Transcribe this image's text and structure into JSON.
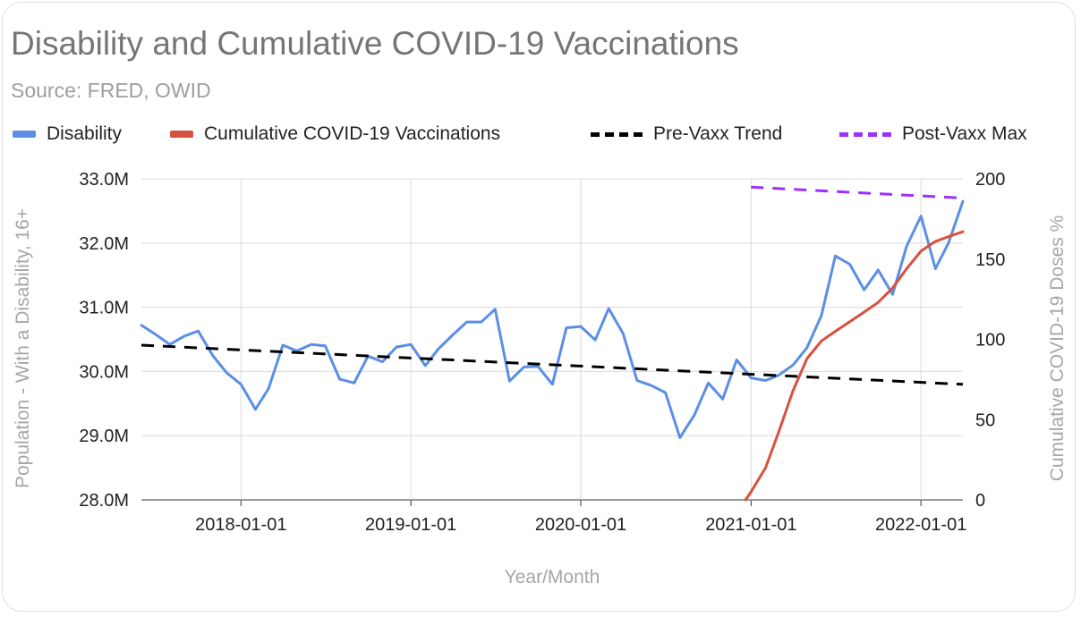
{
  "title": "Disability and Cumulative COVID-19 Vaccinations",
  "subtitle": "Source: FRED, OWID",
  "legend": [
    {
      "label": "Disability",
      "color": "#5b8ee6",
      "style": "solid"
    },
    {
      "label": "Cumulative COVID-19 Vaccinations",
      "color": "#d9503e",
      "style": "solid"
    },
    {
      "label": "Pre-Vaxx Trend",
      "color": "#000000",
      "style": "dashed"
    },
    {
      "label": "Post-Vaxx Max",
      "color": "#9b30ff",
      "style": "dashed"
    }
  ],
  "chart_data": {
    "type": "line",
    "xlabel": "Year/Month",
    "ylabel_left": "Population - With a Disability, 16+",
    "ylabel_right": "Cumulative COVID-19 Doses %",
    "x_ticks": [
      "2018-01-01",
      "2019-01-01",
      "2020-01-01",
      "2021-01-01",
      "2022-01-01"
    ],
    "x_range": [
      "2017-06-01",
      "2022-04-01"
    ],
    "y_left_ticks": [
      "28.0M",
      "29.0M",
      "30.0M",
      "31.0M",
      "32.0M",
      "33.0M"
    ],
    "y_left_range": [
      28.0,
      33.0
    ],
    "y_right_ticks": [
      "0",
      "50",
      "100",
      "150",
      "200"
    ],
    "y_right_range": [
      0,
      200
    ],
    "grid": true,
    "legend_position": "top",
    "series": [
      {
        "name": "Disability",
        "axis": "left",
        "color": "#5b8ee6",
        "x": [
          "2017-06",
          "2017-07",
          "2017-08",
          "2017-09",
          "2017-10",
          "2017-11",
          "2017-12",
          "2018-01",
          "2018-02",
          "2018-03",
          "2018-04",
          "2018-05",
          "2018-06",
          "2018-07",
          "2018-08",
          "2018-09",
          "2018-10",
          "2018-11",
          "2018-12",
          "2019-01",
          "2019-02",
          "2019-03",
          "2019-04",
          "2019-05",
          "2019-06",
          "2019-07",
          "2019-08",
          "2019-09",
          "2019-10",
          "2019-11",
          "2019-12",
          "2020-01",
          "2020-02",
          "2020-03",
          "2020-04",
          "2020-05",
          "2020-06",
          "2020-07",
          "2020-08",
          "2020-09",
          "2020-10",
          "2020-11",
          "2020-12",
          "2021-01",
          "2021-02",
          "2021-03",
          "2021-04",
          "2021-05",
          "2021-06",
          "2021-07",
          "2021-08",
          "2021-09",
          "2021-10",
          "2021-11",
          "2021-12",
          "2022-01",
          "2022-02",
          "2022-03",
          "2022-04"
        ],
        "values": [
          30.72,
          30.58,
          30.42,
          30.55,
          30.63,
          30.25,
          29.98,
          29.8,
          29.41,
          29.73,
          30.41,
          30.32,
          30.42,
          30.4,
          29.88,
          29.82,
          30.24,
          30.15,
          30.38,
          30.42,
          30.09,
          30.35,
          30.57,
          30.77,
          30.77,
          30.97,
          29.85,
          30.07,
          30.08,
          29.8,
          30.68,
          30.7,
          30.49,
          30.98,
          30.59,
          29.86,
          29.78,
          29.67,
          28.97,
          29.32,
          29.82,
          29.57,
          30.18,
          29.9,
          29.86,
          29.94,
          30.1,
          30.37,
          30.87,
          31.8,
          31.67,
          31.27,
          31.58,
          31.2,
          31.95,
          32.42,
          31.6,
          32.0,
          32.65
        ]
      },
      {
        "name": "Cumulative COVID-19 Vaccinations",
        "axis": "right",
        "color": "#d9503e",
        "x": [
          "2020-12-20",
          "2021-01",
          "2021-02",
          "2021-03",
          "2021-04",
          "2021-05",
          "2021-06",
          "2021-07",
          "2021-08",
          "2021-09",
          "2021-10",
          "2021-11",
          "2021-12",
          "2022-01",
          "2022-02",
          "2022-03",
          "2022-04"
        ],
        "values": [
          0,
          5,
          20,
          42,
          68,
          88,
          99,
          105,
          111,
          117,
          123,
          132,
          144,
          155,
          161,
          164,
          167
        ]
      },
      {
        "name": "Pre-Vaxx Trend",
        "axis": "left",
        "color": "#000000",
        "dashed": true,
        "x": [
          "2017-06",
          "2022-04"
        ],
        "values": [
          30.41,
          29.8
        ]
      },
      {
        "name": "Post-Vaxx Max",
        "axis": "left",
        "color": "#9b30ff",
        "dashed": true,
        "x": [
          "2021-01",
          "2022-04"
        ],
        "values": [
          32.87,
          32.7
        ]
      }
    ]
  }
}
